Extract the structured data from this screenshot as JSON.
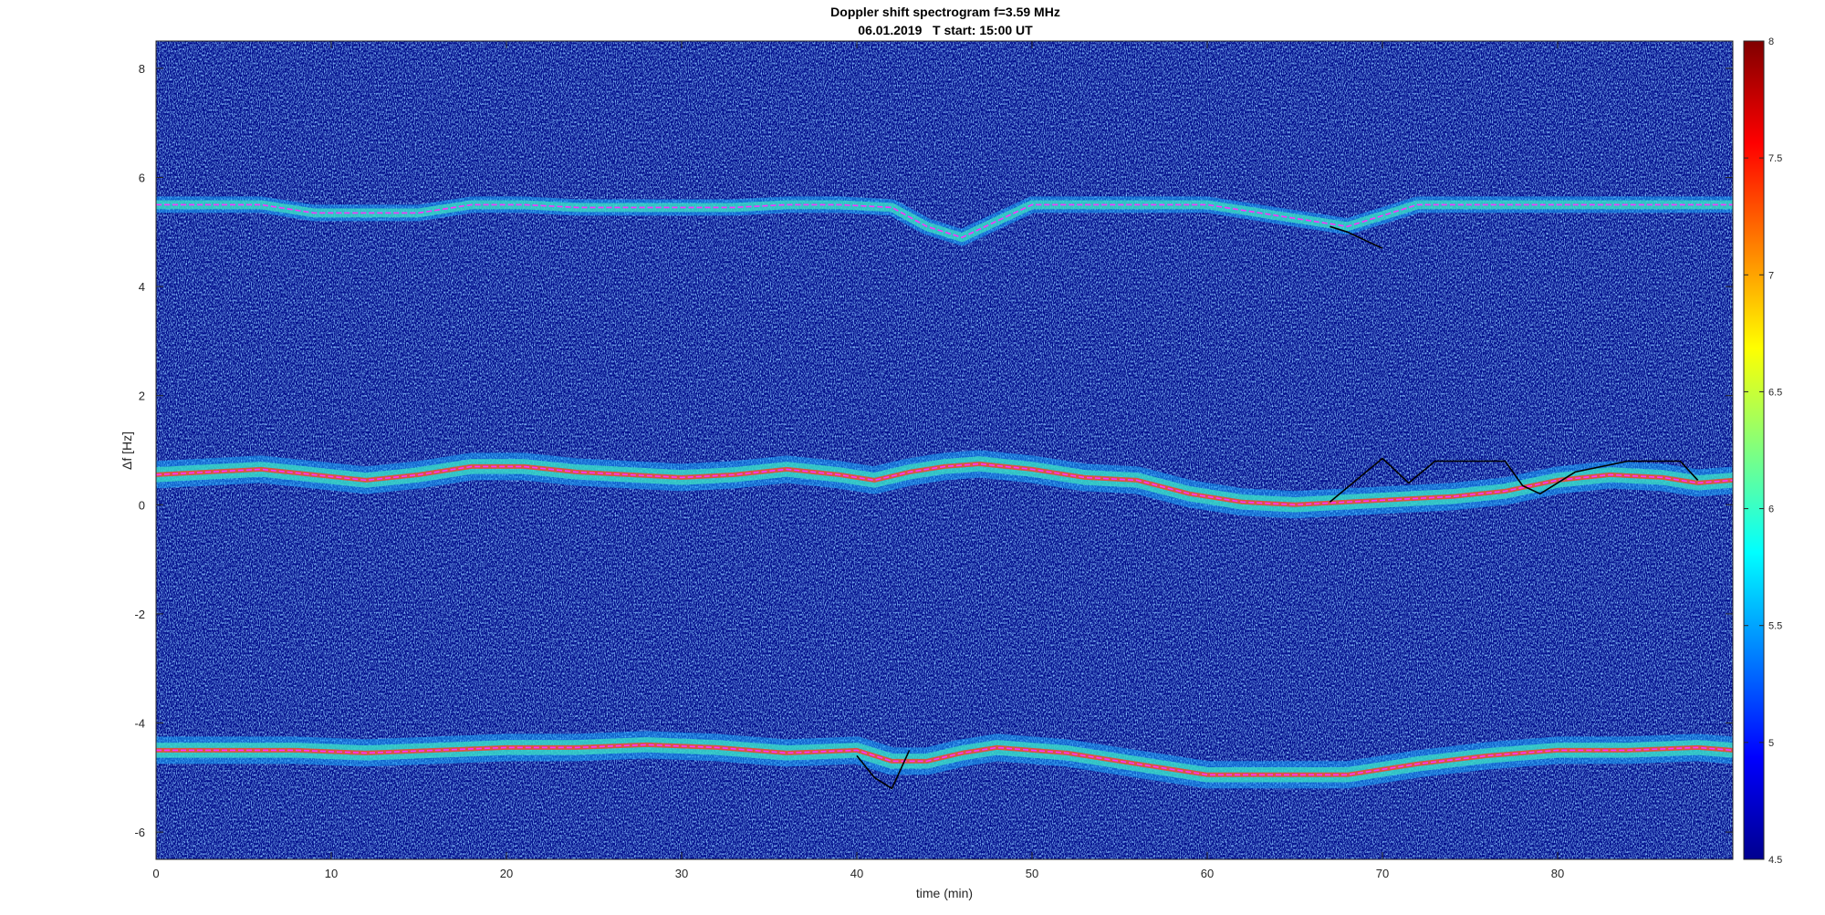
{
  "chart_data": {
    "type": "heatmap",
    "title": "Doppler shift spectrogram f=3.59 MHz",
    "subtitle": "06.01.2019   T start: 15:00 UT",
    "xlabel": "time (min)",
    "ylabel": "Δf [Hz]",
    "xlim": [
      0,
      90
    ],
    "ylim": [
      -6.5,
      8.5
    ],
    "x_ticks": [
      0,
      10,
      20,
      30,
      40,
      50,
      60,
      70,
      80
    ],
    "y_ticks": [
      -6,
      -4,
      -2,
      0,
      2,
      4,
      6,
      8
    ],
    "colorbar": {
      "colormap": "jet",
      "range": [
        4.5,
        8
      ],
      "ticks": [
        4.5,
        5,
        5.5,
        6,
        6.5,
        7,
        7.5,
        8
      ]
    },
    "traces": [
      {
        "color": "#ff33ff",
        "x": [
          0,
          3,
          6,
          9,
          12,
          15,
          18,
          21,
          24,
          27,
          30,
          33,
          36,
          39,
          41,
          43,
          45,
          47,
          50,
          53,
          56,
          59,
          62,
          65,
          68,
          71,
          74,
          77,
          80,
          83,
          86,
          88,
          90
        ],
        "y": [
          0.55,
          0.6,
          0.65,
          0.55,
          0.45,
          0.55,
          0.7,
          0.7,
          0.6,
          0.55,
          0.5,
          0.55,
          0.65,
          0.55,
          0.45,
          0.6,
          0.7,
          0.75,
          0.65,
          0.5,
          0.45,
          0.2,
          0.05,
          0.0,
          0.05,
          0.1,
          0.15,
          0.25,
          0.45,
          0.55,
          0.5,
          0.4,
          0.45
        ]
      },
      {
        "color": "#ff33ff",
        "x": [
          0,
          3,
          6,
          9,
          12,
          15,
          18,
          21,
          24,
          27,
          30,
          33,
          36,
          39,
          42,
          44,
          46,
          48,
          50,
          55,
          60,
          64,
          66,
          68,
          70,
          72,
          75,
          80,
          85,
          90
        ],
        "y": [
          5.5,
          5.5,
          5.5,
          5.35,
          5.35,
          5.35,
          5.5,
          5.5,
          5.45,
          5.45,
          5.45,
          5.45,
          5.5,
          5.5,
          5.45,
          5.1,
          4.9,
          5.2,
          5.5,
          5.5,
          5.5,
          5.3,
          5.2,
          5.1,
          5.3,
          5.5,
          5.5,
          5.5,
          5.5,
          5.5
        ]
      },
      {
        "color": "#ff33ff",
        "x": [
          0,
          4,
          8,
          12,
          16,
          20,
          24,
          28,
          32,
          36,
          40,
          42,
          44,
          46,
          48,
          52,
          56,
          60,
          64,
          68,
          72,
          76,
          80,
          84,
          88,
          90
        ],
        "y": [
          -4.5,
          -4.5,
          -4.5,
          -4.55,
          -4.5,
          -4.45,
          -4.45,
          -4.4,
          -4.45,
          -4.55,
          -4.5,
          -4.7,
          -4.7,
          -4.55,
          -4.45,
          -4.55,
          -4.75,
          -4.95,
          -4.95,
          -4.95,
          -4.75,
          -4.6,
          -4.5,
          -4.5,
          -4.45,
          -4.5
        ]
      },
      {
        "color": "#000000",
        "x": [
          67,
          68.5,
          70,
          71.5,
          73,
          75,
          77,
          78,
          79,
          81,
          84,
          87,
          88
        ],
        "y": [
          0.05,
          0.45,
          0.85,
          0.4,
          0.8,
          0.8,
          0.8,
          0.35,
          0.2,
          0.6,
          0.8,
          0.8,
          0.45
        ]
      },
      {
        "color": "#000000",
        "x": [
          40,
          41,
          42,
          43
        ],
        "y": [
          -4.6,
          -5.0,
          -5.2,
          -4.5
        ]
      },
      {
        "color": "#000000",
        "x": [
          67,
          68,
          69,
          70
        ],
        "y": [
          5.1,
          5.0,
          4.85,
          4.7
        ]
      }
    ]
  }
}
